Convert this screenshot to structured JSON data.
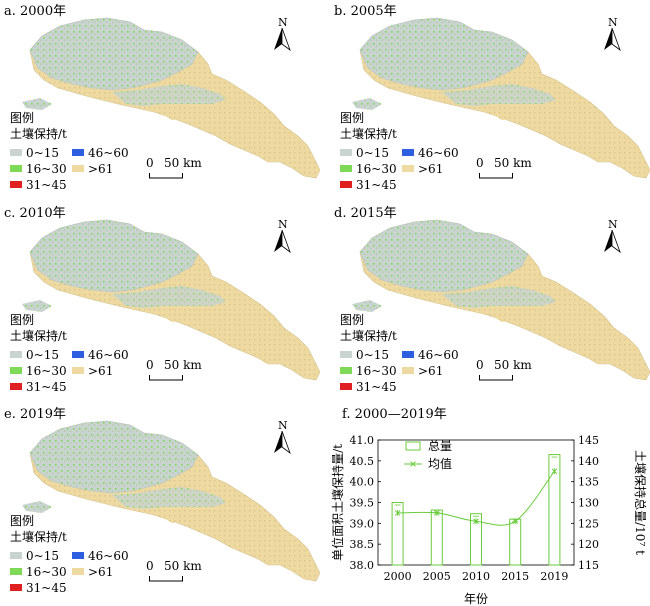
{
  "panels": [
    {
      "label": "a. 2000年"
    },
    {
      "label": "b. 2005年"
    },
    {
      "label": "c. 2010年"
    },
    {
      "label": "d. 2015年"
    },
    {
      "label": "e. 2019年"
    }
  ],
  "legend": {
    "title": "图例",
    "subtitle": "土壤保持/t",
    "classes": [
      {
        "label": "0~15",
        "color": "#c9d3cf"
      },
      {
        "label": "16~30",
        "color": "#7ed957"
      },
      {
        "label": "31~45",
        "color": "#e02020"
      },
      {
        "label": "46~60",
        "color": "#2d5fe0"
      },
      {
        "label": ">61",
        "color": "#eed9a0"
      }
    ]
  },
  "north_arrow": {
    "label": "N"
  },
  "scale_bar": {
    "zero": "0",
    "distance": "50 km"
  },
  "chart_panel": {
    "label": "f. 2000—2019年"
  },
  "chart_data": {
    "type": "bar",
    "categories": [
      "2000",
      "2005",
      "2010",
      "2015",
      "2019"
    ],
    "xlabel": "年份",
    "ylabel_left": "单位面积土壤保持量/t",
    "ylabel_right": "土壤保持总量/10⁷ t",
    "ylim_left": [
      38.0,
      41.0
    ],
    "yticks_left": [
      "38.0",
      "38.5",
      "39.0",
      "39.5",
      "40.0",
      "40.5",
      "41.0"
    ],
    "ylim_right": [
      115,
      145
    ],
    "yticks_right": [
      "115",
      "120",
      "125",
      "130",
      "135",
      "140",
      "145"
    ],
    "series": [
      {
        "name": "总量",
        "kind": "bar",
        "axis": "right",
        "values": [
          130.0,
          128.2,
          127.3,
          126.0,
          141.5
        ]
      },
      {
        "name": "均值",
        "kind": "line",
        "axis": "left",
        "values": [
          39.25,
          39.25,
          39.05,
          39.05,
          40.25
        ]
      }
    ],
    "color": "#6acb3c",
    "legend_position": "top-left"
  }
}
